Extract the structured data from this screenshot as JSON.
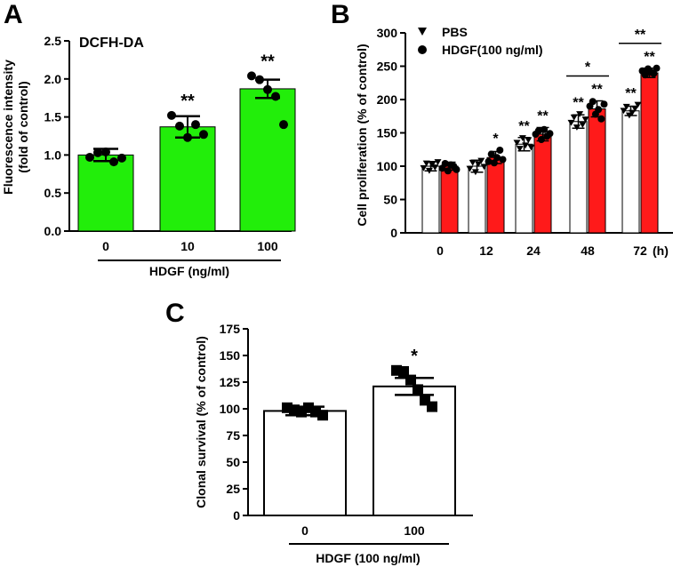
{
  "chart_data": [
    {
      "panel": "A",
      "type": "bar",
      "annotation": "DCFH-DA",
      "annotation_color": "#2ecc1f",
      "categories": [
        "0",
        "10",
        "100"
      ],
      "values": [
        1.0,
        1.37,
        1.87
      ],
      "errors": [
        0.08,
        0.14,
        0.12
      ],
      "points": [
        [
          0.97,
          1.03,
          1.04,
          0.91,
          0.96
        ],
        [
          1.52,
          1.38,
          1.23,
          1.4,
          1.27
        ],
        [
          2.04,
          1.99,
          1.86,
          1.77,
          1.4
        ]
      ],
      "significance": [
        "",
        "**",
        "**"
      ],
      "bar_color": "#22ee0a",
      "ylabel": "Fluorescence intensity\n(fold of control)",
      "xlabel": "HDGF (ng/ml)",
      "ylim": [
        0,
        2.5
      ],
      "yticks": [
        "0.0",
        "0.5",
        "1.0",
        "1.5",
        "2.0",
        "2.5"
      ]
    },
    {
      "panel": "B",
      "type": "bar",
      "categories": [
        "0",
        "12",
        "24",
        "48",
        "72"
      ],
      "x_unit": "(h)",
      "ylabel": "Cell proliferation (% of control)",
      "ylim": [
        0,
        300
      ],
      "yticks": [
        "0",
        "50",
        "100",
        "150",
        "200",
        "250",
        "300"
      ],
      "legend": [
        "PBS",
        "HDGF(100 ng/ml)"
      ],
      "series": [
        {
          "name": "PBS",
          "color": "#ffffff",
          "marker": "triangle-down",
          "values": [
            100,
            100,
            133,
            167,
            183
          ],
          "errors": [
            7,
            9,
            10,
            10,
            7
          ],
          "points": [
            [
              97,
              104,
              93,
              102,
              98,
              106
            ],
            [
              96,
              105,
              91,
              103,
              108,
              99
            ],
            [
              135,
              126,
              142,
              131,
              139,
              128
            ],
            [
              165,
              173,
              158,
              178,
              162,
              170
            ],
            [
              183,
              189,
              176,
              180,
              186,
              192
            ]
          ],
          "significance": [
            "",
            "",
            "**",
            "**",
            "**"
          ]
        },
        {
          "name": "HDGF(100 ng/ml)",
          "color": "#ff1a1a",
          "marker": "circle",
          "values": [
            100,
            113,
            148,
            186,
            240
          ],
          "errors": [
            6,
            9,
            10,
            12,
            7
          ],
          "points": [
            [
              97,
              104,
              93,
              102,
              100,
              95
            ],
            [
              107,
              118,
              105,
              113,
              124,
              110
            ],
            [
              148,
              153,
              140,
              155,
              145,
              149
            ],
            [
              190,
              197,
              178,
              185,
              171,
              193
            ],
            [
              243,
              237,
              246,
              241,
              239,
              247
            ]
          ],
          "significance": [
            "",
            "*",
            "**",
            "**",
            "**"
          ]
        }
      ],
      "brackets": [
        {
          "category": "48",
          "label": "*"
        },
        {
          "category": "72",
          "label": "**"
        }
      ]
    },
    {
      "panel": "C",
      "type": "bar",
      "categories": [
        "0",
        "100"
      ],
      "values": [
        98,
        121
      ],
      "errors": [
        4,
        8
      ],
      "points": [
        [
          101,
          99,
          97,
          101,
          97,
          94
        ],
        [
          136,
          135,
          127,
          118,
          108,
          102
        ]
      ],
      "significance": [
        "",
        "*"
      ],
      "bar_color": "#ffffff",
      "ylabel": "Clonal survival (% of control)",
      "xlabel": "HDGF (100 ng/ml)",
      "ylim": [
        0,
        175
      ],
      "yticks": [
        "0",
        "25",
        "50",
        "75",
        "100",
        "125",
        "150",
        "175"
      ]
    }
  ]
}
